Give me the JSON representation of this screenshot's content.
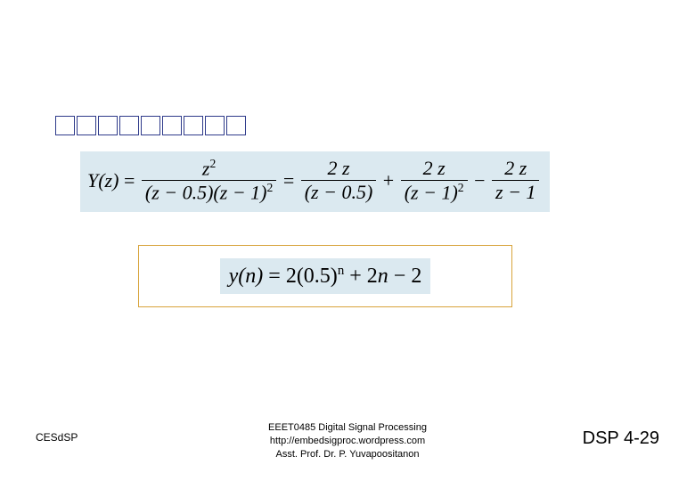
{
  "title": {
    "box_count": 9,
    "box_color": "#2e3a8a"
  },
  "eq1": {
    "bg": "#dbe9f0",
    "lhs": "Y(z)",
    "frac1": {
      "num_html": "z<span class='sup'>2</span>",
      "den_html": "(z − 0.5)(z − 1)<span class='sup'>2</span>"
    },
    "frac2": {
      "num_html": "2<span class='roman'> </span>z",
      "den_html": "(z − 0.5)"
    },
    "frac3": {
      "num_html": "2<span class='roman'> </span>z",
      "den_html": "(z − 1)<span class='sup'>2</span>"
    },
    "frac4": {
      "num_html": "2<span class='roman'> </span>z",
      "den_html": "z − 1"
    }
  },
  "eq2": {
    "frame_border": "#d8a33a",
    "bg": "#dbe9f0",
    "text_html": "y(n) <span class='roman'>= 2(0.5)</span><span class='sup'>n</span> <span class='roman'>+ 2</span>n <span class='roman'>− 2</span>"
  },
  "footer": {
    "left": "CESdSP",
    "center_line1": "EEET0485 Digital Signal Processing",
    "center_line2": "http://embedsigproc.wordpress.com",
    "center_line3": "Asst. Prof. Dr. P. Yuvapoositanon",
    "right": "DSP 4-29"
  }
}
